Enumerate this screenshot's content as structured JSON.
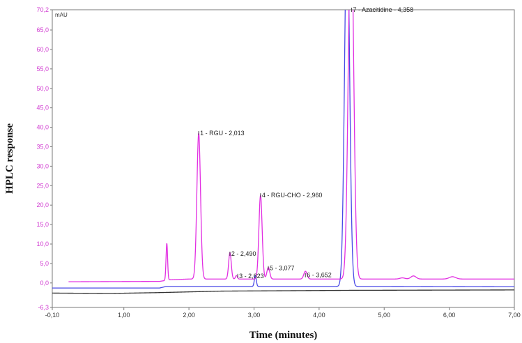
{
  "chart_data": {
    "type": "line",
    "title": "",
    "xlabel": "Time (minutes)",
    "ylabel": "HPLC response",
    "yunit": "mAU",
    "xlim": [
      -0.1,
      7.0
    ],
    "ylim": [
      -6.3,
      70.2
    ],
    "x_ticks": [
      "-0,10",
      "1,00",
      "2,00",
      "3,00",
      "4,00",
      "5,00",
      "6,00",
      "7,00"
    ],
    "x_tick_values": [
      -0.1,
      1.0,
      2.0,
      3.0,
      4.0,
      5.0,
      6.0,
      7.0
    ],
    "y_ticks": [
      "-6,3",
      "0,0",
      "5,0",
      "10,0",
      "15,0",
      "20,0",
      "25,0",
      "30,0",
      "35,0",
      "40,0",
      "45,0",
      "50,0",
      "55,0",
      "60,0",
      "65,0",
      "70,2"
    ],
    "y_tick_values": [
      -6.3,
      0,
      5,
      10,
      15,
      20,
      25,
      30,
      35,
      40,
      45,
      50,
      55,
      60,
      65,
      70.2
    ],
    "grid": false,
    "annotations": [
      {
        "text": "1 - RGU - 2,013",
        "x": 2.15,
        "y": 38.5
      },
      {
        "text": "2 - 2,490",
        "x": 2.63,
        "y": 7.5
      },
      {
        "text": "3 - 2,623",
        "x": 2.75,
        "y": 1.8
      },
      {
        "text": "4 - RGU-CHO - 2,960",
        "x": 3.1,
        "y": 22.5
      },
      {
        "text": "5 - 3,077",
        "x": 3.22,
        "y": 3.8
      },
      {
        "text": "6 - 3,652",
        "x": 3.79,
        "y": 2.0
      },
      {
        "text": "7 - Azacitidine  - 4,358",
        "x": 4.5,
        "y": 70.2
      }
    ],
    "series": [
      {
        "color": "#e22ee2",
        "baseline": [
          [
            0.15,
            0.3
          ],
          [
            1.55,
            0.4
          ],
          [
            1.7,
            0.8
          ],
          [
            2.0,
            1.0
          ],
          [
            4.8,
            1.0
          ],
          [
            7.0,
            1.0
          ]
        ],
        "peaks": [
          {
            "x": 1.66,
            "h": 9.5,
            "w": 0.012
          },
          {
            "x": 2.15,
            "h": 37.5,
            "w": 0.028
          },
          {
            "x": 2.63,
            "h": 6.8,
            "w": 0.02
          },
          {
            "x": 2.73,
            "h": 0.9,
            "w": 0.015
          },
          {
            "x": 3.1,
            "h": 21.5,
            "w": 0.025
          },
          {
            "x": 3.22,
            "h": 3.0,
            "w": 0.022
          },
          {
            "x": 3.79,
            "h": 2.0,
            "w": 0.025
          },
          {
            "x": 4.49,
            "h": 95.0,
            "w": 0.04
          },
          {
            "x": 5.28,
            "h": 0.3,
            "w": 0.04
          },
          {
            "x": 5.45,
            "h": 0.8,
            "w": 0.04
          },
          {
            "x": 6.05,
            "h": 0.6,
            "w": 0.05
          }
        ]
      },
      {
        "color": "#4848e6",
        "baseline": [
          [
            -0.1,
            -1.3
          ],
          [
            1.55,
            -1.3
          ],
          [
            1.65,
            -0.9
          ],
          [
            2.5,
            -0.9
          ],
          [
            4.9,
            -0.9
          ],
          [
            7.0,
            -1.0
          ]
        ],
        "peaks": [
          {
            "x": 3.02,
            "h": 2.8,
            "w": 0.015
          },
          {
            "x": 4.43,
            "h": 95.0,
            "w": 0.038
          }
        ]
      },
      {
        "color": "#333333",
        "baseline": [
          [
            -0.2,
            -2.6
          ],
          [
            0.8,
            -2.7
          ],
          [
            1.5,
            -2.5
          ],
          [
            2.5,
            -2.1
          ],
          [
            4.5,
            -1.9
          ],
          [
            7.0,
            -1.8
          ]
        ],
        "peaks": []
      }
    ]
  }
}
